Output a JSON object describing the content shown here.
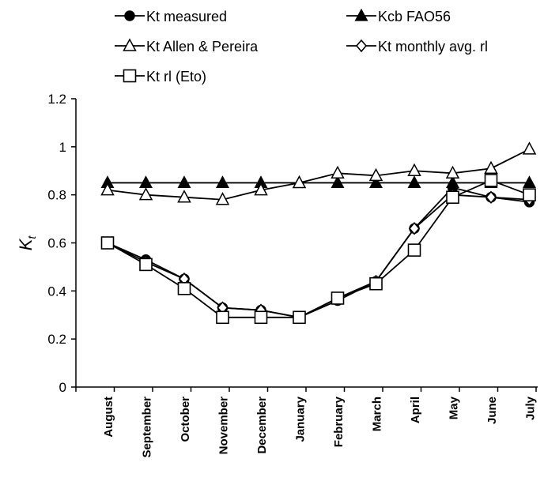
{
  "chart_data": {
    "type": "line",
    "categories": [
      "August",
      "September",
      "October",
      "November",
      "December",
      "January",
      "February",
      "March",
      "April",
      "May",
      "June",
      "July"
    ],
    "ylabel_main": "K",
    "ylabel_sub": "t",
    "ylim": [
      0,
      1.2
    ],
    "yticks": [
      0,
      0.2,
      0.4,
      0.6,
      0.8,
      1,
      1.2
    ],
    "ytick_labels": [
      "0",
      "0.2",
      "0.4",
      "0.6",
      "0.8",
      "1",
      "1.2"
    ],
    "grid": false,
    "legend_position": "top",
    "series": [
      {
        "name": "Kt measured",
        "marker": "circle-filled",
        "values": [
          0.6,
          0.53,
          0.45,
          0.33,
          0.32,
          0.29,
          0.36,
          0.44,
          0.66,
          0.83,
          0.79,
          0.77
        ]
      },
      {
        "name": "Kcb FAO56",
        "marker": "triangle-filled",
        "values": [
          0.85,
          0.85,
          0.85,
          0.85,
          0.85,
          0.85,
          0.85,
          0.85,
          0.85,
          0.85,
          0.85,
          0.85
        ]
      },
      {
        "name": "Kt Allen & Pereira",
        "marker": "triangle-open",
        "values": [
          0.82,
          0.8,
          0.79,
          0.78,
          0.82,
          0.85,
          0.89,
          0.88,
          0.9,
          0.89,
          0.91,
          0.99
        ]
      },
      {
        "name": "Kt monthly avg. rl",
        "marker": "diamond-open",
        "values": [
          0.6,
          0.52,
          0.45,
          0.33,
          0.32,
          0.29,
          0.37,
          0.44,
          0.66,
          0.8,
          0.79,
          0.78
        ]
      },
      {
        "name": "Kt rl (Eto)",
        "marker": "square-open",
        "values": [
          0.6,
          0.51,
          0.41,
          0.29,
          0.29,
          0.29,
          0.37,
          0.43,
          0.57,
          0.79,
          0.86,
          0.8
        ]
      }
    ]
  }
}
